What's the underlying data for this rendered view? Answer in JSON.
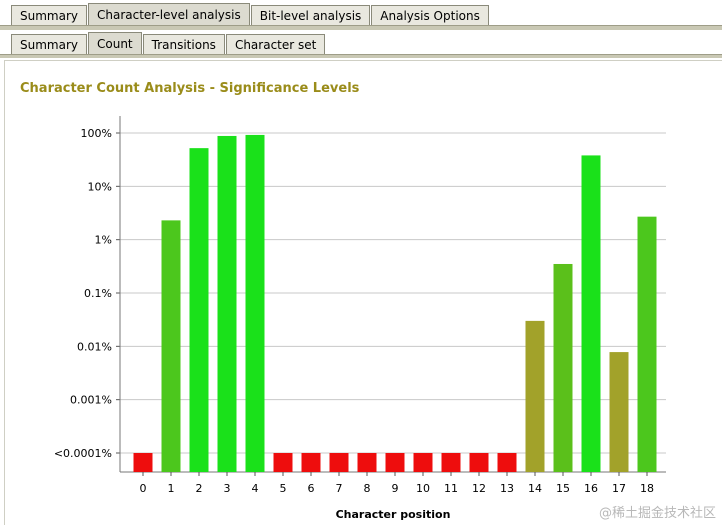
{
  "tabs_main": [
    {
      "label": "Summary"
    },
    {
      "label": "Character-level analysis",
      "active": true
    },
    {
      "label": "Bit-level analysis"
    },
    {
      "label": "Analysis Options"
    }
  ],
  "tabs_sub": [
    {
      "label": "Summary"
    },
    {
      "label": "Count",
      "active": true
    },
    {
      "label": "Transitions"
    },
    {
      "label": "Character set"
    }
  ],
  "watermark": "@稀土掘金技术社区",
  "chart_data": {
    "type": "bar",
    "title": "Character Count Analysis - Significance Levels",
    "xlabel": "Character position",
    "ylabel": "",
    "yscale": "log",
    "ytick_labels": [
      "<0.0001%",
      "0.001%",
      "0.01%",
      "0.1%",
      "1%",
      "10%",
      "100%"
    ],
    "ylim_percent": [
      0.0001,
      100
    ],
    "categories": [
      "0",
      "1",
      "2",
      "3",
      "4",
      "5",
      "6",
      "7",
      "8",
      "9",
      "10",
      "11",
      "12",
      "13",
      "14",
      "15",
      "16",
      "17",
      "18"
    ],
    "values_percent": [
      0.0001,
      2.3,
      52,
      88,
      92,
      0.0001,
      0.0001,
      0.0001,
      0.0001,
      0.0001,
      0.0001,
      0.0001,
      0.0001,
      0.0001,
      0.03,
      0.35,
      38,
      0.0078,
      2.7
    ],
    "colors": [
      "#ee0d0d",
      "#4cc71d",
      "#1ae11a",
      "#1ae11a",
      "#1ae11a",
      "#ee0d0d",
      "#ee0d0d",
      "#ee0d0d",
      "#ee0d0d",
      "#ee0d0d",
      "#ee0d0d",
      "#ee0d0d",
      "#ee0d0d",
      "#ee0d0d",
      "#a2a22a",
      "#5bc01b",
      "#1ae11a",
      "#a2a22a",
      "#4cc71d"
    ],
    "grid": true
  }
}
